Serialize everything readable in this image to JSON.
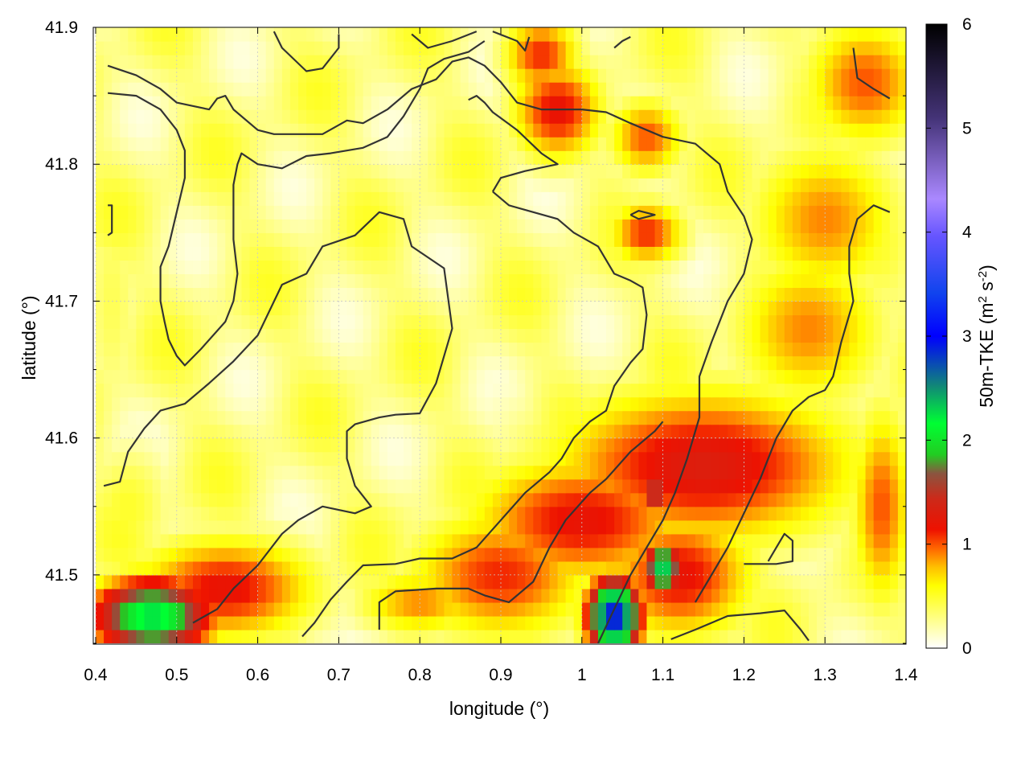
{
  "chart_data": {
    "type": "heatmap",
    "title": "",
    "xlabel": "longitude (°)",
    "ylabel": "latitude (°)",
    "xlim": [
      0.4,
      1.4
    ],
    "ylim": [
      41.45,
      41.9
    ],
    "xticks": [
      "0.4",
      "0.5",
      "0.6",
      "0.7",
      "0.8",
      "0.9",
      "1",
      "1.1",
      "1.2",
      "1.3",
      "1.4"
    ],
    "yticks": [
      "41.5",
      "41.6",
      "41.7",
      "41.8",
      "41.9"
    ],
    "grid": true,
    "colorbar": {
      "label_main": "50m-TKE (m",
      "label_sup1": "2",
      "label_mid": " s",
      "label_sup2": "-2",
      "label_end": ")",
      "range": [
        0,
        6
      ],
      "ticks": [
        "0",
        "1",
        "2",
        "3",
        "4",
        "5",
        "6"
      ],
      "palette": [
        [
          0.0,
          "#ffffff"
        ],
        [
          0.06,
          "#ffff66"
        ],
        [
          0.1,
          "#ffff00"
        ],
        [
          0.13,
          "#ffbf00"
        ],
        [
          0.16,
          "#ff6600"
        ],
        [
          0.19,
          "#ee1100"
        ],
        [
          0.24,
          "#cc2a1a"
        ],
        [
          0.28,
          "#8a5540"
        ],
        [
          0.31,
          "#22cc22"
        ],
        [
          0.36,
          "#00ff33"
        ],
        [
          0.42,
          "#118877"
        ],
        [
          0.5,
          "#0000ff"
        ],
        [
          0.57,
          "#1144ee"
        ],
        [
          0.66,
          "#6655ff"
        ],
        [
          0.72,
          "#aa88ff"
        ],
        [
          0.85,
          "#443377"
        ],
        [
          1.0,
          "#000000"
        ]
      ]
    },
    "field_features": [
      {
        "lon": 0.97,
        "lat": 41.84,
        "value": 1.2,
        "rlon": 0.06,
        "rlat": 0.04
      },
      {
        "lon": 1.08,
        "lat": 41.82,
        "value": 1.0,
        "rlon": 0.05,
        "rlat": 0.03
      },
      {
        "lon": 0.95,
        "lat": 41.88,
        "value": 1.1,
        "rlon": 0.05,
        "rlat": 0.03
      },
      {
        "lon": 1.08,
        "lat": 41.75,
        "value": 1.1,
        "rlon": 0.05,
        "rlat": 0.025
      },
      {
        "lon": 1.35,
        "lat": 41.86,
        "value": 1.0,
        "rlon": 0.08,
        "rlat": 0.05
      },
      {
        "lon": 1.3,
        "lat": 41.76,
        "value": 0.9,
        "rlon": 0.1,
        "rlat": 0.06
      },
      {
        "lon": 1.28,
        "lat": 41.68,
        "value": 0.9,
        "rlon": 0.1,
        "rlat": 0.06
      },
      {
        "lon": 1.15,
        "lat": 41.58,
        "value": 1.3,
        "rlon": 0.2,
        "rlat": 0.06
      },
      {
        "lon": 1.0,
        "lat": 41.54,
        "value": 1.2,
        "rlon": 0.15,
        "rlat": 0.05
      },
      {
        "lon": 0.9,
        "lat": 41.5,
        "value": 1.1,
        "rlon": 0.12,
        "rlat": 0.05
      },
      {
        "lon": 1.12,
        "lat": 41.5,
        "value": 1.2,
        "rlon": 0.1,
        "rlat": 0.05
      },
      {
        "lon": 1.04,
        "lat": 41.47,
        "value": 3.0,
        "rlon": 0.035,
        "rlat": 0.03
      },
      {
        "lon": 1.1,
        "lat": 41.505,
        "value": 2.4,
        "rlon": 0.025,
        "rlat": 0.02
      },
      {
        "lon": 1.09,
        "lat": 41.56,
        "value": 1.8,
        "rlon": 0.015,
        "rlat": 0.015
      },
      {
        "lon": 0.47,
        "lat": 41.47,
        "value": 2.3,
        "rlon": 0.08,
        "rlat": 0.03
      },
      {
        "lon": 0.56,
        "lat": 41.49,
        "value": 1.2,
        "rlon": 0.12,
        "rlat": 0.04
      },
      {
        "lon": 0.44,
        "lat": 41.55,
        "value": 0.5,
        "rlon": 0.06,
        "rlat": 0.05
      },
      {
        "lon": 0.42,
        "lat": 41.7,
        "value": 0.4,
        "rlon": 0.04,
        "rlat": 0.1
      },
      {
        "lon": 0.8,
        "lat": 41.48,
        "value": 0.9,
        "rlon": 0.08,
        "rlat": 0.025
      },
      {
        "lon": 1.37,
        "lat": 41.55,
        "value": 1.0,
        "rlon": 0.04,
        "rlat": 0.08
      }
    ],
    "contours": [
      [
        [
          0.41,
          41.565
        ],
        [
          0.43,
          41.568
        ],
        [
          0.44,
          41.59
        ],
        [
          0.46,
          41.607
        ],
        [
          0.48,
          41.62
        ],
        [
          0.51,
          41.625
        ],
        [
          0.54,
          41.64
        ],
        [
          0.57,
          41.656
        ],
        [
          0.6,
          41.675
        ],
        [
          0.63,
          41.712
        ],
        [
          0.66,
          41.72
        ],
        [
          0.68,
          41.74
        ],
        [
          0.72,
          41.748
        ],
        [
          0.75,
          41.765
        ],
        [
          0.78,
          41.76
        ],
        [
          0.79,
          41.74
        ],
        [
          0.83,
          41.724
        ],
        [
          0.84,
          41.68
        ],
        [
          0.82,
          41.64
        ],
        [
          0.8,
          41.618
        ],
        [
          0.77,
          41.617
        ],
        [
          0.75,
          41.615
        ],
        [
          0.72,
          41.61
        ],
        [
          0.71,
          41.605
        ],
        [
          0.71,
          41.585
        ],
        [
          0.72,
          41.565
        ],
        [
          0.74,
          41.55
        ],
        [
          0.72,
          41.545
        ],
        [
          0.68,
          41.55
        ],
        [
          0.65,
          41.54
        ],
        [
          0.63,
          41.53
        ],
        [
          0.6,
          41.507
        ],
        [
          0.57,
          41.49
        ],
        [
          0.55,
          41.475
        ],
        [
          0.52,
          41.465
        ]
      ],
      [
        [
          0.415,
          41.872
        ],
        [
          0.45,
          41.865
        ],
        [
          0.48,
          41.855
        ],
        [
          0.5,
          41.845
        ],
        [
          0.54,
          41.84
        ],
        [
          0.55,
          41.848
        ],
        [
          0.56,
          41.85
        ],
        [
          0.57,
          41.84
        ],
        [
          0.6,
          41.825
        ],
        [
          0.62,
          41.822
        ],
        [
          0.65,
          41.822
        ],
        [
          0.68,
          41.822
        ],
        [
          0.71,
          41.832
        ],
        [
          0.73,
          41.83
        ],
        [
          0.76,
          41.84
        ],
        [
          0.79,
          41.855
        ],
        [
          0.82,
          41.862
        ],
        [
          0.84,
          41.875
        ],
        [
          0.86,
          41.878
        ],
        [
          0.88,
          41.872
        ],
        [
          0.9,
          41.86
        ],
        [
          0.92,
          41.845
        ],
        [
          0.95,
          41.84
        ],
        [
          0.97,
          41.84
        ],
        [
          1.0,
          41.84
        ],
        [
          1.03,
          41.838
        ],
        [
          1.06,
          41.83
        ],
        [
          1.1,
          41.82
        ],
        [
          1.14,
          41.815
        ],
        [
          1.17,
          41.8
        ],
        [
          1.18,
          41.78
        ],
        [
          1.2,
          41.762
        ],
        [
          1.21,
          41.745
        ],
        [
          1.2,
          41.72
        ],
        [
          1.18,
          41.7
        ],
        [
          1.16,
          41.67
        ],
        [
          1.145,
          41.645
        ],
        [
          1.145,
          41.615
        ],
        [
          1.13,
          41.585
        ],
        [
          1.115,
          41.56
        ],
        [
          1.1,
          41.54
        ],
        [
          1.08,
          41.52
        ],
        [
          1.06,
          41.5
        ],
        [
          1.04,
          41.475
        ],
        [
          1.02,
          41.45
        ]
      ],
      [
        [
          0.415,
          41.852
        ],
        [
          0.45,
          41.85
        ],
        [
          0.48,
          41.84
        ],
        [
          0.5,
          41.825
        ],
        [
          0.51,
          41.81
        ],
        [
          0.51,
          41.79
        ],
        [
          0.5,
          41.765
        ],
        [
          0.49,
          41.74
        ],
        [
          0.48,
          41.725
        ],
        [
          0.48,
          41.7
        ],
        [
          0.485,
          41.685
        ],
        [
          0.49,
          41.672
        ],
        [
          0.5,
          41.66
        ],
        [
          0.51,
          41.653
        ],
        [
          0.53,
          41.665
        ],
        [
          0.56,
          41.685
        ],
        [
          0.57,
          41.7
        ],
        [
          0.575,
          41.72
        ],
        [
          0.57,
          41.745
        ],
        [
          0.57,
          41.785
        ],
        [
          0.575,
          41.8
        ],
        [
          0.58,
          41.808
        ],
        [
          0.6,
          41.8
        ],
        [
          0.63,
          41.797
        ],
        [
          0.66,
          41.806
        ],
        [
          0.69,
          41.808
        ],
        [
          0.73,
          41.812
        ],
        [
          0.76,
          41.82
        ],
        [
          0.78,
          41.835
        ],
        [
          0.8,
          41.855
        ],
        [
          0.81,
          41.87
        ],
        [
          0.83,
          41.877
        ],
        [
          0.86,
          41.882
        ],
        [
          0.88,
          41.89
        ]
      ],
      [
        [
          0.62,
          41.897
        ],
        [
          0.63,
          41.885
        ],
        [
          0.66,
          41.868
        ],
        [
          0.68,
          41.87
        ],
        [
          0.7,
          41.885
        ],
        [
          0.7,
          41.895
        ]
      ],
      [
        [
          0.79,
          41.895
        ],
        [
          0.81,
          41.885
        ],
        [
          0.84,
          41.89
        ],
        [
          0.87,
          41.897
        ]
      ],
      [
        [
          0.89,
          41.897
        ],
        [
          0.92,
          41.89
        ],
        [
          0.93,
          41.883
        ],
        [
          0.935,
          41.893
        ]
      ],
      [
        [
          1.04,
          41.885
        ],
        [
          1.05,
          41.89
        ],
        [
          1.06,
          41.893
        ]
      ],
      [
        [
          1.335,
          41.885
        ],
        [
          1.34,
          41.863
        ],
        [
          1.36,
          41.855
        ],
        [
          1.38,
          41.848
        ]
      ],
      [
        [
          0.89,
          41.78
        ],
        [
          0.9,
          41.79
        ],
        [
          0.93,
          41.795
        ],
        [
          0.97,
          41.8
        ],
        [
          0.95,
          41.808
        ],
        [
          0.92,
          41.825
        ],
        [
          0.89,
          41.838
        ],
        [
          0.88,
          41.845
        ],
        [
          0.87,
          41.85
        ],
        [
          0.86,
          41.847
        ]
      ],
      [
        [
          0.89,
          41.78
        ],
        [
          0.91,
          41.77
        ],
        [
          0.94,
          41.765
        ],
        [
          0.97,
          41.76
        ],
        [
          0.99,
          41.75
        ],
        [
          1.02,
          41.74
        ],
        [
          1.04,
          41.72
        ],
        [
          1.06,
          41.715
        ],
        [
          1.075,
          41.71
        ],
        [
          1.08,
          41.69
        ],
        [
          1.075,
          41.665
        ],
        [
          1.06,
          41.655
        ],
        [
          1.04,
          41.638
        ],
        [
          1.03,
          41.62
        ],
        [
          1.01,
          41.612
        ],
        [
          0.99,
          41.6
        ],
        [
          0.975,
          41.585
        ],
        [
          0.96,
          41.575
        ],
        [
          0.93,
          41.56
        ],
        [
          0.9,
          41.54
        ],
        [
          0.87,
          41.52
        ],
        [
          0.84,
          41.512
        ],
        [
          0.8,
          41.512
        ],
        [
          0.77,
          41.508
        ],
        [
          0.73,
          41.507
        ],
        [
          0.71,
          41.495
        ],
        [
          0.69,
          41.482
        ],
        [
          0.67,
          41.465
        ],
        [
          0.655,
          41.455
        ]
      ],
      [
        [
          0.75,
          41.46
        ],
        [
          0.75,
          41.48
        ],
        [
          0.77,
          41.488
        ],
        [
          0.82,
          41.49
        ],
        [
          0.86,
          41.49
        ],
        [
          0.88,
          41.485
        ],
        [
          0.91,
          41.48
        ],
        [
          0.94,
          41.495
        ],
        [
          0.96,
          41.52
        ],
        [
          0.98,
          41.54
        ],
        [
          1.01,
          41.56
        ],
        [
          1.03,
          41.57
        ],
        [
          1.06,
          41.59
        ],
        [
          1.09,
          41.605
        ],
        [
          1.1,
          41.612
        ]
      ],
      [
        [
          1.11,
          41.453
        ],
        [
          1.14,
          41.46
        ],
        [
          1.18,
          41.47
        ],
        [
          1.22,
          41.472
        ],
        [
          1.25,
          41.474
        ],
        [
          1.27,
          41.46
        ],
        [
          1.28,
          41.452
        ]
      ],
      [
        [
          1.2,
          41.508
        ],
        [
          1.24,
          41.508
        ],
        [
          1.26,
          41.51
        ],
        [
          1.26,
          41.525
        ],
        [
          1.25,
          41.53
        ],
        [
          1.24,
          41.52
        ],
        [
          1.23,
          41.51
        ]
      ],
      [
        [
          1.14,
          41.48
        ],
        [
          1.16,
          41.5
        ],
        [
          1.18,
          41.52
        ],
        [
          1.2,
          41.545
        ],
        [
          1.22,
          41.57
        ],
        [
          1.24,
          41.6
        ],
        [
          1.26,
          41.62
        ],
        [
          1.28,
          41.63
        ],
        [
          1.3,
          41.635
        ],
        [
          1.31,
          41.645
        ],
        [
          1.32,
          41.67
        ],
        [
          1.335,
          41.7
        ],
        [
          1.33,
          41.72
        ],
        [
          1.33,
          41.74
        ],
        [
          1.34,
          41.76
        ],
        [
          1.36,
          41.77
        ],
        [
          1.38,
          41.765
        ]
      ],
      [
        [
          1.06,
          41.763
        ],
        [
          1.07,
          41.766
        ],
        [
          1.09,
          41.763
        ],
        [
          1.07,
          41.76
        ],
        [
          1.06,
          41.763
        ]
      ],
      [
        [
          0.415,
          41.77
        ],
        [
          0.42,
          41.77
        ],
        [
          0.42,
          41.75
        ],
        [
          0.415,
          41.748
        ]
      ]
    ]
  }
}
